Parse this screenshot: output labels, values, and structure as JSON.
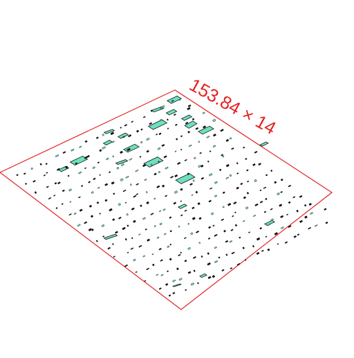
{
  "view": {
    "background_color": "#ffffff",
    "sheet_border_color": "#e32222",
    "part_fill_color": "#6de0c0",
    "part_stroke_color": "#111111"
  },
  "dimension_label": {
    "text": "153.84 × 14",
    "color": "#e32222"
  }
}
